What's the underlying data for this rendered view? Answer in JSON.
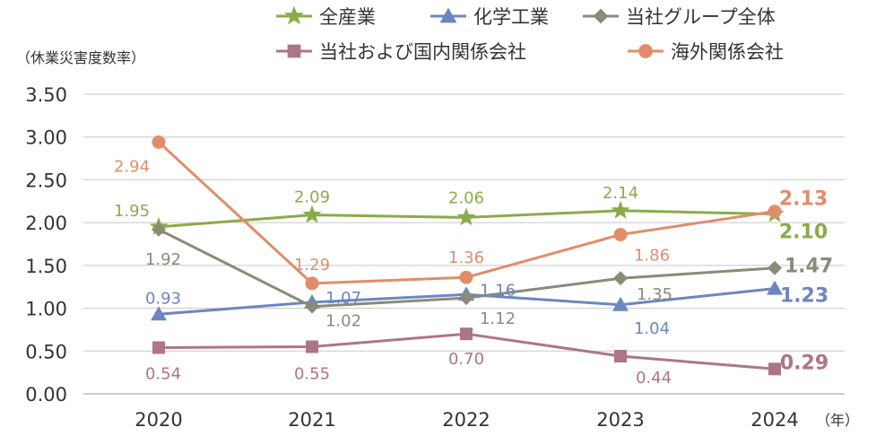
{
  "chart_data": {
    "type": "line",
    "title": "",
    "ylabel": "（休業災害度数率）",
    "xlabel": "",
    "x_unit": "（年）",
    "categories": [
      "2020",
      "2021",
      "2022",
      "2023",
      "2024"
    ],
    "ylim": [
      0,
      3.5
    ],
    "yticks": [
      "0.00",
      "0.50",
      "1.00",
      "1.50",
      "2.00",
      "2.50",
      "3.00",
      "3.50"
    ],
    "grid": true,
    "legend": "top",
    "series": [
      {
        "name": "全産業",
        "marker": "star",
        "color": "#8aab4a",
        "values": [
          1.95,
          2.09,
          2.06,
          2.14,
          2.1
        ],
        "labels": [
          "1.95",
          "2.09",
          "2.06",
          "2.14",
          "2.10"
        ]
      },
      {
        "name": "化学工業",
        "marker": "triangle",
        "color": "#6d86bf",
        "values": [
          0.93,
          1.07,
          1.16,
          1.04,
          1.23
        ],
        "labels": [
          "0.93",
          "1.07",
          "1.16",
          "1.04",
          "1.23"
        ]
      },
      {
        "name": "当社グループ全体",
        "marker": "diamond",
        "color": "#888c78",
        "values": [
          1.92,
          1.02,
          1.12,
          1.35,
          1.47
        ],
        "labels": [
          "1.92",
          "1.02",
          "1.12",
          "1.35",
          "1.47"
        ]
      },
      {
        "name": "当社および国内関係会社",
        "marker": "square",
        "color": "#ad7589",
        "values": [
          0.54,
          0.55,
          0.7,
          0.44,
          0.29
        ],
        "labels": [
          "0.54",
          "0.55",
          "0.70",
          "0.44",
          "0.29"
        ]
      },
      {
        "name": "海外関係会社",
        "marker": "circle",
        "color": "#e08d6b",
        "values": [
          2.94,
          1.29,
          1.36,
          1.86,
          2.13
        ],
        "labels": [
          "2.94",
          "1.29",
          "1.36",
          "1.86",
          "2.13"
        ]
      }
    ]
  }
}
